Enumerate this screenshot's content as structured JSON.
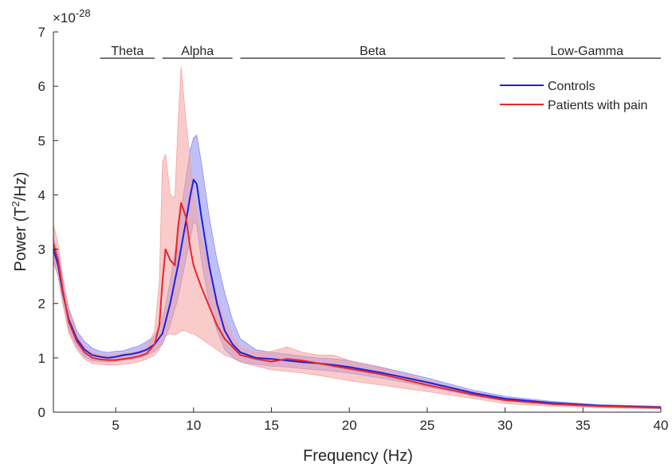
{
  "chart_data": {
    "type": "line",
    "xlabel": "Frequency (Hz)",
    "ylabel_main": "Power (T",
    "ylabel_sup": "2",
    "ylabel_tail": "/Hz)",
    "exponent_base": "×10",
    "exponent_power": "-28",
    "xlim": [
      1,
      40
    ],
    "ylim": [
      0,
      7
    ],
    "xticks": [
      5,
      10,
      15,
      20,
      25,
      30,
      35,
      40
    ],
    "yticks": [
      0,
      1,
      2,
      3,
      4,
      5,
      6,
      7
    ],
    "grid": false,
    "legend_position": "top-right",
    "bands": [
      {
        "label": "Theta",
        "start": 4,
        "end": 7.5
      },
      {
        "label": "Alpha",
        "start": 8,
        "end": 12.5
      },
      {
        "label": "Beta",
        "start": 13,
        "end": 30
      },
      {
        "label": "Low-Gamma",
        "start": 30.5,
        "end": 40
      }
    ],
    "series": [
      {
        "name": "Controls",
        "color": "#1f1fdd",
        "band_color": "#8c8cf2",
        "x": [
          1,
          1.3,
          1.6,
          2,
          2.5,
          3,
          3.5,
          4,
          4.5,
          5,
          5.5,
          6,
          6.5,
          7,
          7.5,
          8,
          8.5,
          9,
          9.5,
          9.8,
          10,
          10.2,
          10.5,
          11,
          11.5,
          12,
          12.5,
          13,
          14,
          15,
          16,
          17,
          18,
          19,
          20,
          22,
          25,
          28,
          30,
          33,
          36,
          40
        ],
        "mean": [
          3.0,
          2.7,
          2.2,
          1.7,
          1.35,
          1.15,
          1.05,
          1.02,
          1.0,
          1.02,
          1.05,
          1.07,
          1.1,
          1.15,
          1.25,
          1.45,
          2.0,
          2.7,
          3.5,
          4.0,
          4.28,
          4.2,
          3.6,
          2.7,
          2.0,
          1.5,
          1.25,
          1.1,
          1.0,
          0.98,
          0.95,
          0.92,
          0.9,
          0.87,
          0.83,
          0.73,
          0.55,
          0.35,
          0.25,
          0.17,
          0.12,
          0.09
        ],
        "upper": [
          3.2,
          2.95,
          2.45,
          1.9,
          1.5,
          1.3,
          1.18,
          1.12,
          1.1,
          1.12,
          1.13,
          1.18,
          1.22,
          1.3,
          1.4,
          1.7,
          2.4,
          3.3,
          4.3,
          4.85,
          5.05,
          5.1,
          4.6,
          3.6,
          2.8,
          2.2,
          1.7,
          1.35,
          1.15,
          1.1,
          1.07,
          1.03,
          1.0,
          0.98,
          0.95,
          0.83,
          0.63,
          0.4,
          0.29,
          0.2,
          0.14,
          0.11
        ],
        "lower": [
          2.8,
          2.5,
          2.0,
          1.5,
          1.2,
          1.02,
          0.95,
          0.93,
          0.92,
          0.94,
          0.96,
          0.98,
          1.0,
          1.05,
          1.12,
          1.25,
          1.6,
          2.1,
          2.8,
          3.2,
          3.5,
          3.45,
          2.8,
          2.0,
          1.5,
          1.15,
          1.02,
          0.92,
          0.88,
          0.85,
          0.83,
          0.8,
          0.78,
          0.75,
          0.72,
          0.63,
          0.47,
          0.3,
          0.21,
          0.14,
          0.1,
          0.07
        ]
      },
      {
        "name": "Patients with pain",
        "color": "#e8262a",
        "band_color": "#f4a3a0",
        "x": [
          1,
          1.3,
          1.6,
          2,
          2.5,
          3,
          3.5,
          4,
          4.5,
          5,
          5.5,
          6,
          6.5,
          7,
          7.5,
          7.8,
          8,
          8.2,
          8.5,
          8.8,
          9,
          9.2,
          9.5,
          9.8,
          10,
          10.5,
          11,
          11.5,
          12,
          12.5,
          13,
          14,
          15,
          16,
          17,
          18,
          19,
          20,
          22,
          25,
          28,
          30,
          33,
          36,
          40
        ],
        "mean": [
          3.1,
          2.8,
          2.25,
          1.65,
          1.3,
          1.1,
          1.0,
          0.97,
          0.96,
          0.96,
          0.98,
          1.0,
          1.03,
          1.08,
          1.25,
          1.6,
          2.4,
          3.0,
          2.8,
          2.7,
          3.4,
          3.85,
          3.6,
          3.0,
          2.7,
          2.3,
          1.95,
          1.6,
          1.35,
          1.2,
          1.05,
          0.98,
          0.93,
          0.98,
          0.95,
          0.9,
          0.85,
          0.8,
          0.7,
          0.5,
          0.32,
          0.22,
          0.15,
          0.11,
          0.08
        ],
        "upper": [
          3.45,
          3.1,
          2.5,
          1.85,
          1.45,
          1.22,
          1.1,
          1.06,
          1.05,
          1.06,
          1.08,
          1.1,
          1.13,
          1.2,
          1.5,
          2.4,
          4.6,
          4.75,
          4.0,
          3.95,
          5.3,
          6.35,
          5.4,
          4.6,
          4.0,
          3.2,
          2.6,
          2.1,
          1.7,
          1.4,
          1.2,
          1.1,
          1.12,
          1.2,
          1.1,
          1.05,
          1.05,
          0.95,
          0.82,
          0.58,
          0.37,
          0.25,
          0.17,
          0.12,
          0.09
        ],
        "lower": [
          2.75,
          2.5,
          2.0,
          1.45,
          1.15,
          0.98,
          0.9,
          0.88,
          0.87,
          0.87,
          0.88,
          0.9,
          0.93,
          0.98,
          1.05,
          1.15,
          1.3,
          1.4,
          1.45,
          1.42,
          1.45,
          1.5,
          1.5,
          1.45,
          1.45,
          1.35,
          1.25,
          1.15,
          1.05,
          1.0,
          0.92,
          0.85,
          0.78,
          0.75,
          0.72,
          0.68,
          0.63,
          0.58,
          0.5,
          0.38,
          0.25,
          0.16,
          0.11,
          0.08,
          0.06
        ]
      }
    ]
  }
}
